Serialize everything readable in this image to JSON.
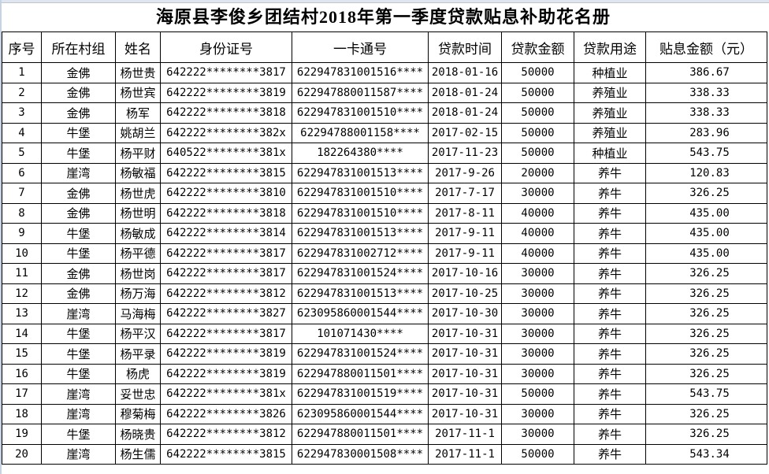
{
  "title": "海原县李俊乡团结村2018年第一季度贷款贴息补助花名册",
  "columns": [
    "序号",
    "所在村组",
    "姓名",
    "身份证号",
    "一卡通号",
    "贷款时间",
    "贷款金额",
    "贷款用途",
    "贴息金额（元）"
  ],
  "rows": [
    [
      "1",
      "金佛",
      "杨世贵",
      "642222********3817",
      "622947831001516****",
      "2018-01-16",
      "50000",
      "种植业",
      "386.67"
    ],
    [
      "2",
      "金佛",
      "杨世宾",
      "642222********3819",
      "622947880011587****",
      "2018-01-24",
      "50000",
      "养殖业",
      "338.33"
    ],
    [
      "3",
      "金佛",
      "杨军",
      "642222********3818",
      "622947831001510****",
      "2018-01-24",
      "50000",
      "养殖业",
      "338.33"
    ],
    [
      "4",
      "牛堡",
      "姚胡兰",
      "642222********382x",
      "62294788001158****",
      "2017-02-15",
      "50000",
      "养殖业",
      "283.96"
    ],
    [
      "5",
      "牛堡",
      "杨平财",
      "640522********381x",
      "182264380****",
      "2017-11-23",
      "50000",
      "种植业",
      "543.75"
    ],
    [
      "6",
      "崖湾",
      "杨敏福",
      "642222********3815",
      "622947831001513****",
      "2017-9-26",
      "20000",
      "养牛",
      "120.83"
    ],
    [
      "7",
      "金佛",
      "杨世虎",
      "642222********3810",
      "622947831001510****",
      "2017-7-17",
      "30000",
      "养牛",
      "326.25"
    ],
    [
      "8",
      "金佛",
      "杨世明",
      "642222********3818",
      "622947831001510****",
      "2017-8-11",
      "40000",
      "养牛",
      "435.00"
    ],
    [
      "9",
      "牛堡",
      "杨敏成",
      "642222********3814",
      "622947831001513****",
      "2017-9-11",
      "40000",
      "养牛",
      "435.00"
    ],
    [
      "10",
      "牛堡",
      "杨平德",
      "642222********3817",
      "622947831002712****",
      "2017-9-11",
      "40000",
      "养牛",
      "435.00"
    ],
    [
      "11",
      "金佛",
      "杨世岗",
      "642222********3817",
      "622947831001524****",
      "2017-10-16",
      "30000",
      "养牛",
      "326.25"
    ],
    [
      "12",
      "金佛",
      "杨万海",
      "642222********3812",
      "622947831001513****",
      "2017-10-25",
      "30000",
      "养牛",
      "326.25"
    ],
    [
      "13",
      "崖湾",
      "马海梅",
      "642222********3827",
      "623095860001544****",
      "2017-10-30",
      "30000",
      "养牛",
      "326.25"
    ],
    [
      "14",
      "牛堡",
      "杨平汉",
      "642222********3817",
      "101071430****",
      "2017-10-31",
      "30000",
      "养牛",
      "326.25"
    ],
    [
      "15",
      "牛堡",
      "杨平录",
      "642222********3819",
      "622947831001524****",
      "2017-10-31",
      "30000",
      "养牛",
      "326.25"
    ],
    [
      "16",
      "牛堡",
      "杨虎",
      "642222********3819",
      "622947880011501****",
      "2017-10-31",
      "30000",
      "养牛",
      "326.25"
    ],
    [
      "17",
      "崖湾",
      "妥世忠",
      "642222********381x",
      "622947831001519****",
      "2017-10-31",
      "50000",
      "养牛",
      "543.75"
    ],
    [
      "18",
      "崖湾",
      "穆菊梅",
      "642222********3826",
      "623095860001544****",
      "2017-10-31",
      "30000",
      "养牛",
      "326.25"
    ],
    [
      "19",
      "牛堡",
      "杨晓贵",
      "642222********3812",
      "622947880011501****",
      "2017-11-1",
      "30000",
      "养牛",
      "326.25"
    ],
    [
      "20",
      "崖湾",
      "杨生儒",
      "642222********3815",
      "622947830001508****",
      "2017-11-1",
      "50000",
      "养牛",
      "543.34"
    ]
  ]
}
